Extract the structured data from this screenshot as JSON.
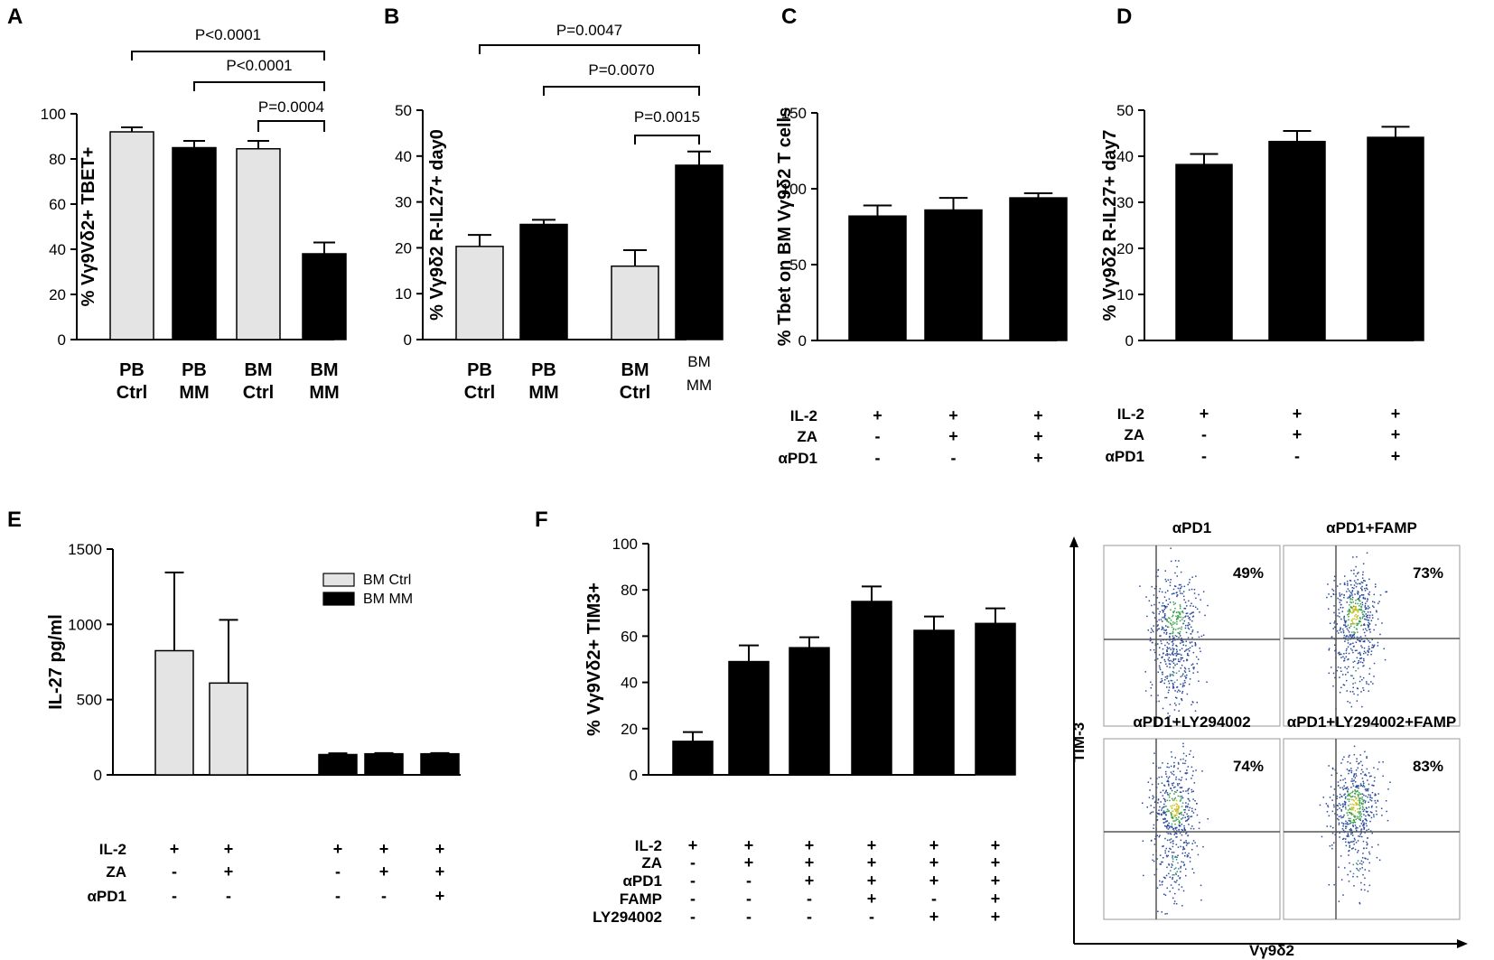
{
  "figure": {
    "panel_letters": [
      "A",
      "B",
      "C",
      "D",
      "E",
      "F"
    ]
  },
  "colors": {
    "light_bar": "#e4e4e4",
    "dark_bar": "#000000",
    "axis": "#000000"
  },
  "chart_data": [
    {
      "id": "A",
      "type": "bar",
      "ylabel": "% Vγ9Vδ2+ TBET+",
      "ylim": [
        0,
        100
      ],
      "yticks": [
        0,
        20,
        40,
        60,
        80,
        100
      ],
      "categories": [
        [
          "PB",
          "Ctrl"
        ],
        [
          "PB",
          "MM"
        ],
        [
          "BM",
          "Ctrl"
        ],
        [
          "BM",
          "MM"
        ]
      ],
      "values": [
        92,
        85,
        84.5,
        38
      ],
      "errors": [
        2,
        3,
        3.5,
        5
      ],
      "bar_colors": [
        "light",
        "dark",
        "light",
        "dark"
      ],
      "significance": [
        {
          "from": 0,
          "to": 3,
          "label": "P<0.0001"
        },
        {
          "from": 1,
          "to": 3,
          "label": "P<0.0001"
        },
        {
          "from": 2,
          "to": 3,
          "label": "P=0.0004"
        }
      ]
    },
    {
      "id": "B",
      "type": "bar",
      "ylabel": "% Vγ9δ2 R-IL27+ day0",
      "ylim": [
        0,
        50
      ],
      "yticks": [
        0,
        10,
        20,
        30,
        40,
        50
      ],
      "categories": [
        [
          "PB",
          "Ctrl"
        ],
        [
          "PB",
          "MM"
        ],
        [
          "BM",
          "Ctrl"
        ],
        [
          "BM",
          "MM"
        ]
      ],
      "values": [
        20.3,
        25.1,
        16,
        38
      ],
      "errors": [
        2.5,
        1,
        3.5,
        3
      ],
      "bar_colors": [
        "light",
        "dark",
        "light",
        "dark"
      ],
      "significance": [
        {
          "from": 0,
          "to": 3,
          "label": "P=0.0047"
        },
        {
          "from": 1,
          "to": 3,
          "label": "P=0.0070"
        },
        {
          "from": 2,
          "to": 3,
          "label": "P=0.0015"
        }
      ]
    },
    {
      "id": "C",
      "type": "bar",
      "ylabel": "% Tbet on BM Vγ9δ2 T cells",
      "ylim": [
        0,
        150
      ],
      "yticks": [
        0,
        50,
        100,
        150
      ],
      "values": [
        82,
        86,
        94
      ],
      "errors": [
        7,
        8,
        3
      ],
      "bar_colors": [
        "dark",
        "dark",
        "dark"
      ],
      "conditions": [
        {
          "label": "IL-2",
          "marks": [
            "+",
            "+",
            "+"
          ]
        },
        {
          "label": "ZA",
          "marks": [
            "-",
            "+",
            "+"
          ]
        },
        {
          "label": "αPD1",
          "marks": [
            "-",
            "-",
            "+"
          ]
        }
      ]
    },
    {
      "id": "D",
      "type": "bar",
      "ylabel": "% Vγ9δ2 R-IL27+ day7",
      "ylim": [
        0,
        50
      ],
      "yticks": [
        0,
        10,
        20,
        30,
        40,
        50
      ],
      "values": [
        38.2,
        43.2,
        44.1
      ],
      "errors": [
        2.3,
        2.3,
        2.3
      ],
      "bar_colors": [
        "dark",
        "dark",
        "dark"
      ],
      "conditions": [
        {
          "label": "IL-2",
          "marks": [
            "+",
            "+",
            "+"
          ]
        },
        {
          "label": "ZA",
          "marks": [
            "-",
            "+",
            "+"
          ]
        },
        {
          "label": "αPD1",
          "marks": [
            "-",
            "-",
            "+"
          ]
        }
      ]
    },
    {
      "id": "E",
      "type": "bar",
      "ylabel": "IL-27 pg/ml",
      "ylim": [
        0,
        1500
      ],
      "yticks": [
        0,
        500,
        1000,
        1500
      ],
      "values": [
        825,
        610,
        135,
        140,
        140
      ],
      "errors": [
        520,
        420,
        8,
        5,
        5
      ],
      "bar_colors": [
        "light",
        "light",
        "dark",
        "dark",
        "dark"
      ],
      "legend": [
        {
          "label": "BM Ctrl",
          "color": "light"
        },
        {
          "label": "BM MM",
          "color": "dark"
        }
      ],
      "conditions": [
        {
          "label": "IL-2",
          "marks": [
            "+",
            "+",
            "+",
            "+",
            "+"
          ]
        },
        {
          "label": "ZA",
          "marks": [
            "-",
            "+",
            "-",
            "+",
            "+"
          ]
        },
        {
          "label": "αPD1",
          "marks": [
            "-",
            "-",
            "-",
            "-",
            "+"
          ]
        }
      ]
    },
    {
      "id": "F",
      "type": "bar",
      "ylabel": "% Vγ9Vδ2+ TIM3+",
      "ylim": [
        0,
        100
      ],
      "yticks": [
        0,
        20,
        40,
        60,
        80,
        100
      ],
      "values": [
        14.5,
        49,
        55,
        75,
        62.5,
        65.5
      ],
      "errors": [
        4,
        7,
        4.5,
        6.5,
        6,
        6.5
      ],
      "bar_colors": [
        "dark",
        "dark",
        "dark",
        "dark",
        "dark",
        "dark"
      ],
      "conditions": [
        {
          "label": "IL-2",
          "marks": [
            "+",
            "+",
            "+",
            "+",
            "+",
            "+"
          ]
        },
        {
          "label": "ZA",
          "marks": [
            "-",
            "+",
            "+",
            "+",
            "+",
            "+"
          ]
        },
        {
          "label": "αPD1",
          "marks": [
            "-",
            "-",
            "+",
            "+",
            "+",
            "+"
          ]
        },
        {
          "label": "FAMP",
          "marks": [
            "-",
            "-",
            "-",
            "+",
            "-",
            "+"
          ]
        },
        {
          "label": "LY294002",
          "marks": [
            "-",
            "-",
            "-",
            "-",
            "+",
            "+"
          ]
        }
      ]
    },
    {
      "id": "F-flow",
      "type": "scatter",
      "xlabel": "Vγ9δ2",
      "ylabel": "TIM-3",
      "plots": [
        {
          "title": "αPD1",
          "percent": "49%",
          "density": 0.55
        },
        {
          "title": "αPD1+FAMP",
          "percent": "73%",
          "density": 0.8
        },
        {
          "title": "αPD1+LY294002",
          "percent": "74%",
          "density": 0.8
        },
        {
          "title": "αPD1+LY294002+FAMP",
          "percent": "83%",
          "density": 1.0
        }
      ]
    }
  ]
}
